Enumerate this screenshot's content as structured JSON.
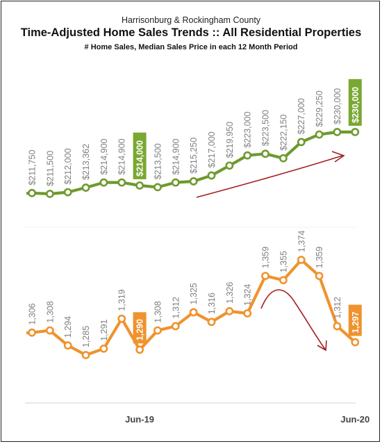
{
  "header": {
    "region": "Harrisonburg & Rockingham County",
    "title": "Time-Adjusted Home Sales Trends  ::  All Residential Properties",
    "subtitle": "# Home Sales, Median Sales Price in each 12 Month Period"
  },
  "chart_data": [
    {
      "type": "line",
      "name": "median-price",
      "color": "#6e9a2e",
      "highlight_color": "#7aa832",
      "labels": [
        "$211,750",
        "$211,500",
        "$212,000",
        "$213,362",
        "$214,900",
        "$214,900",
        "$214,000",
        "$213,500",
        "$214,900",
        "$215,250",
        "$217,000",
        "$219,950",
        "$223,000",
        "$223,500",
        "$222,150",
        "$227,000",
        "$229,250",
        "$230,000",
        "$230,000"
      ],
      "values": [
        211750,
        211500,
        212000,
        213362,
        214900,
        214900,
        214000,
        213500,
        214900,
        215250,
        217000,
        219950,
        223000,
        223500,
        222150,
        227000,
        229250,
        230000,
        230000
      ],
      "highlight_indices": [
        6,
        18
      ]
    },
    {
      "type": "line",
      "name": "home-sales",
      "color": "#f0922e",
      "highlight_color": "#f0922e",
      "labels": [
        "1,306",
        "1,308",
        "1,294",
        "1,285",
        "1,291",
        "1,319",
        "1,290",
        "1,308",
        "1,312",
        "1,325",
        "1,316",
        "1,326",
        "1,324",
        "1,359",
        "1,355",
        "1,374",
        "1,359",
        "1,312",
        "1,297"
      ],
      "values": [
        1306,
        1308,
        1294,
        1285,
        1291,
        1319,
        1290,
        1308,
        1312,
        1325,
        1316,
        1326,
        1324,
        1359,
        1355,
        1374,
        1359,
        1312,
        1297
      ],
      "highlight_indices": [
        6,
        18
      ]
    }
  ],
  "x_axis": {
    "ticks": [
      {
        "label": "Jun-19",
        "index": 6
      },
      {
        "label": "Jun-20",
        "index": 18
      }
    ]
  },
  "annotations": {
    "arrow_color": "#a31e22"
  }
}
